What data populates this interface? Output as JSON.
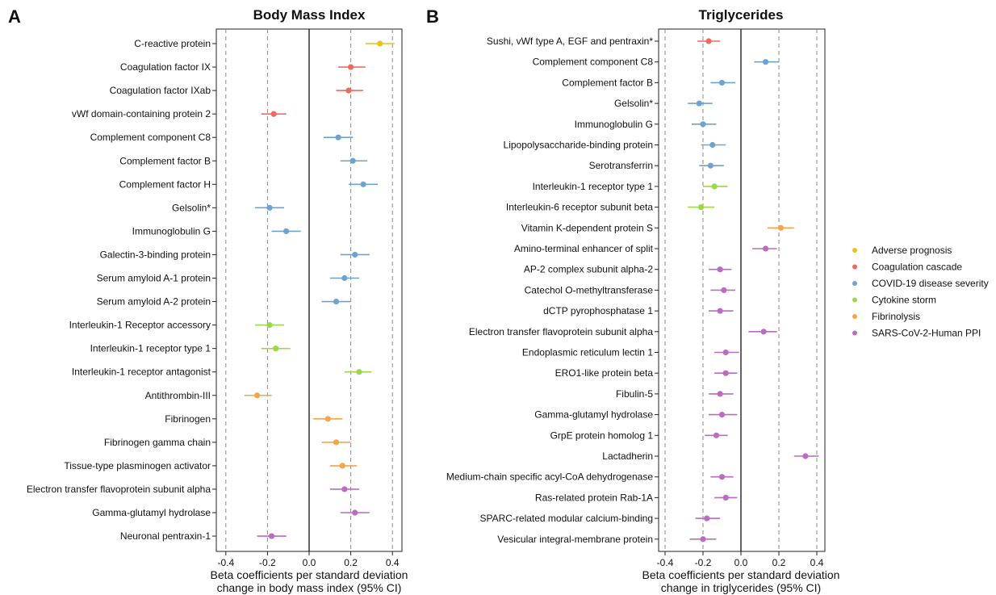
{
  "groups_colors": {
    "Adverse prognosis": "#e9c21a",
    "Coagulation cascade": "#ee6a5f",
    "COVID-19 disease severity": "#6fa3cf",
    "Cytokine storm": "#9ad84a",
    "Fibrinolysis": "#f8a448",
    "SARS-CoV-2-Human PPI": "#b96cc0"
  },
  "legend": {
    "placement": "right",
    "entries": [
      "Adverse prognosis",
      "Coagulation cascade",
      "COVID-19 disease severity",
      "Cytokine storm",
      "Fibrinolysis",
      "SARS-CoV-2-Human PPI"
    ]
  },
  "chart_data": [
    {
      "type": "scatter",
      "subtype": "forest",
      "panel": "A",
      "title": "Body Mass Index",
      "xlabel_line1": "Beta coefficients per standard deviation",
      "xlabel_line2": "change in body mass index (95% CI)",
      "xlim": [
        -0.45,
        0.45
      ],
      "xticks": [
        -0.4,
        -0.2,
        0.0,
        0.2,
        0.4
      ],
      "xtick_labels": [
        "-0.4",
        "-0.2",
        "0.0",
        "0.2",
        "0.4"
      ],
      "gridlines": [
        -0.4,
        -0.2,
        0.2,
        0.4
      ],
      "refline": 0,
      "rows": [
        {
          "label": "C-reactive protein",
          "group": "Adverse prognosis",
          "beta": 0.34,
          "lo": 0.27,
          "hi": 0.41
        },
        {
          "label": "Coagulation factor IX",
          "group": "Coagulation cascade",
          "beta": 0.2,
          "lo": 0.14,
          "hi": 0.27
        },
        {
          "label": "Coagulation factor IXab",
          "group": "Coagulation cascade",
          "beta": 0.19,
          "lo": 0.13,
          "hi": 0.26
        },
        {
          "label": "vWf domain-containing protein 2",
          "group": "Coagulation cascade",
          "beta": -0.17,
          "lo": -0.23,
          "hi": -0.11
        },
        {
          "label": "Complement component C8",
          "group": "COVID-19 disease severity",
          "beta": 0.14,
          "lo": 0.07,
          "hi": 0.21
        },
        {
          "label": "Complement factor B",
          "group": "COVID-19 disease severity",
          "beta": 0.21,
          "lo": 0.15,
          "hi": 0.28
        },
        {
          "label": "Complement factor H",
          "group": "COVID-19 disease severity",
          "beta": 0.26,
          "lo": 0.19,
          "hi": 0.33
        },
        {
          "label": "Gelsolin*",
          "group": "COVID-19 disease severity",
          "beta": -0.19,
          "lo": -0.26,
          "hi": -0.12
        },
        {
          "label": "Immunoglobulin G",
          "group": "COVID-19 disease severity",
          "beta": -0.11,
          "lo": -0.18,
          "hi": -0.04
        },
        {
          "label": "Galectin-3-binding protein",
          "group": "COVID-19 disease severity",
          "beta": 0.22,
          "lo": 0.15,
          "hi": 0.29
        },
        {
          "label": "Serum amyloid A-1 protein",
          "group": "COVID-19 disease severity",
          "beta": 0.17,
          "lo": 0.1,
          "hi": 0.24
        },
        {
          "label": "Serum amyloid A-2 protein",
          "group": "COVID-19 disease severity",
          "beta": 0.13,
          "lo": 0.06,
          "hi": 0.2
        },
        {
          "label": "Interleukin-1 Receptor accessory",
          "group": "Cytokine storm",
          "beta": -0.19,
          "lo": -0.26,
          "hi": -0.12
        },
        {
          "label": "Interleukin-1 receptor type 1",
          "group": "Cytokine storm",
          "beta": -0.16,
          "lo": -0.23,
          "hi": -0.09
        },
        {
          "label": "Interleukin-1 receptor antagonist",
          "group": "Cytokine storm",
          "beta": 0.24,
          "lo": 0.17,
          "hi": 0.3
        },
        {
          "label": "Antithrombin-III",
          "group": "Fibrinolysis",
          "beta": -0.25,
          "lo": -0.31,
          "hi": -0.18
        },
        {
          "label": "Fibrinogen",
          "group": "Fibrinolysis",
          "beta": 0.09,
          "lo": 0.02,
          "hi": 0.16
        },
        {
          "label": "Fibrinogen gamma chain",
          "group": "Fibrinolysis",
          "beta": 0.13,
          "lo": 0.06,
          "hi": 0.2
        },
        {
          "label": "Tissue-type plasminogen activator",
          "group": "Fibrinolysis",
          "beta": 0.16,
          "lo": 0.1,
          "hi": 0.23
        },
        {
          "label": "Electron transfer flavoprotein subunit alpha",
          "group": "SARS-CoV-2-Human PPI",
          "beta": 0.17,
          "lo": 0.1,
          "hi": 0.24
        },
        {
          "label": "Gamma-glutamyl hydrolase",
          "group": "SARS-CoV-2-Human PPI",
          "beta": 0.22,
          "lo": 0.15,
          "hi": 0.29
        },
        {
          "label": "Neuronal pentraxin-1",
          "group": "SARS-CoV-2-Human PPI",
          "beta": -0.18,
          "lo": -0.25,
          "hi": -0.11
        }
      ]
    },
    {
      "type": "scatter",
      "subtype": "forest",
      "panel": "B",
      "title": "Triglycerides",
      "xlabel_line1": "Beta coefficients per standard deviation",
      "xlabel_line2": "change in triglycerides (95% CI)",
      "xlim": [
        -0.45,
        0.45
      ],
      "xticks": [
        -0.4,
        -0.2,
        0.0,
        0.2,
        0.4
      ],
      "xtick_labels": [
        "-0.4",
        "-0.2",
        "0.0",
        "0.2",
        "0.4"
      ],
      "gridlines": [
        -0.4,
        -0.2,
        0.2,
        0.4
      ],
      "refline": 0,
      "rows": [
        {
          "label": "Sushi, vWf type A, EGF and pentraxin*",
          "group": "Coagulation cascade",
          "beta": -0.17,
          "lo": -0.23,
          "hi": -0.11
        },
        {
          "label": "Complement component C8",
          "group": "COVID-19 disease severity",
          "beta": 0.13,
          "lo": 0.07,
          "hi": 0.2
        },
        {
          "label": "Complement factor B",
          "group": "COVID-19 disease severity",
          "beta": -0.1,
          "lo": -0.16,
          "hi": -0.03
        },
        {
          "label": "Gelsolin*",
          "group": "COVID-19 disease severity",
          "beta": -0.22,
          "lo": -0.28,
          "hi": -0.15
        },
        {
          "label": "Immunoglobulin G",
          "group": "COVID-19 disease severity",
          "beta": -0.2,
          "lo": -0.26,
          "hi": -0.13
        },
        {
          "label": "Lipopolysaccharide-binding protein",
          "group": "COVID-19 disease severity",
          "beta": -0.15,
          "lo": -0.21,
          "hi": -0.08
        },
        {
          "label": "Serotransferrin",
          "group": "COVID-19 disease severity",
          "beta": -0.16,
          "lo": -0.22,
          "hi": -0.09
        },
        {
          "label": "Interleukin-1 receptor type 1",
          "group": "Cytokine storm",
          "beta": -0.14,
          "lo": -0.2,
          "hi": -0.07
        },
        {
          "label": "Interleukin-6 receptor subunit beta",
          "group": "Cytokine storm",
          "beta": -0.21,
          "lo": -0.28,
          "hi": -0.14
        },
        {
          "label": "Vitamin K-dependent protein S",
          "group": "Fibrinolysis",
          "beta": 0.21,
          "lo": 0.14,
          "hi": 0.28
        },
        {
          "label": "Amino-terminal enhancer of split",
          "group": "SARS-CoV-2-Human PPI",
          "beta": 0.13,
          "lo": 0.06,
          "hi": 0.19
        },
        {
          "label": "AP-2 complex subunit alpha-2",
          "group": "SARS-CoV-2-Human PPI",
          "beta": -0.11,
          "lo": -0.17,
          "hi": -0.05
        },
        {
          "label": "Catechol O-methyltransferase",
          "group": "SARS-CoV-2-Human PPI",
          "beta": -0.09,
          "lo": -0.16,
          "hi": -0.03
        },
        {
          "label": "dCTP pyrophosphatase 1",
          "group": "SARS-CoV-2-Human PPI",
          "beta": -0.11,
          "lo": -0.17,
          "hi": -0.04
        },
        {
          "label": "Electron transfer flavoprotein subunit alpha",
          "group": "SARS-CoV-2-Human PPI",
          "beta": 0.12,
          "lo": 0.04,
          "hi": 0.19
        },
        {
          "label": "Endoplasmic reticulum lectin 1",
          "group": "SARS-CoV-2-Human PPI",
          "beta": -0.08,
          "lo": -0.14,
          "hi": -0.01
        },
        {
          "label": "ERO1-like protein beta",
          "group": "SARS-CoV-2-Human PPI",
          "beta": -0.08,
          "lo": -0.14,
          "hi": -0.02
        },
        {
          "label": "Fibulin-5",
          "group": "SARS-CoV-2-Human PPI",
          "beta": -0.11,
          "lo": -0.17,
          "hi": -0.04
        },
        {
          "label": "Gamma-glutamyl hydrolase",
          "group": "SARS-CoV-2-Human PPI",
          "beta": -0.1,
          "lo": -0.17,
          "hi": -0.02
        },
        {
          "label": "GrpE protein homolog 1",
          "group": "SARS-CoV-2-Human PPI",
          "beta": -0.13,
          "lo": -0.19,
          "hi": -0.07
        },
        {
          "label": "Lactadherin",
          "group": "SARS-CoV-2-Human PPI",
          "beta": 0.34,
          "lo": 0.28,
          "hi": 0.41
        },
        {
          "label": "Medium-chain specific acyl-CoA dehydrogenase",
          "group": "SARS-CoV-2-Human PPI",
          "beta": -0.1,
          "lo": -0.16,
          "hi": -0.04
        },
        {
          "label": "Ras-related protein Rab-1A",
          "group": "SARS-CoV-2-Human PPI",
          "beta": -0.08,
          "lo": -0.14,
          "hi": -0.02
        },
        {
          "label": "SPARC-related modular calcium-binding",
          "group": "SARS-CoV-2-Human PPI",
          "beta": -0.18,
          "lo": -0.24,
          "hi": -0.11
        },
        {
          "label": "Vesicular integral-membrane protein",
          "group": "SARS-CoV-2-Human PPI",
          "beta": -0.2,
          "lo": -0.27,
          "hi": -0.13
        }
      ]
    }
  ]
}
